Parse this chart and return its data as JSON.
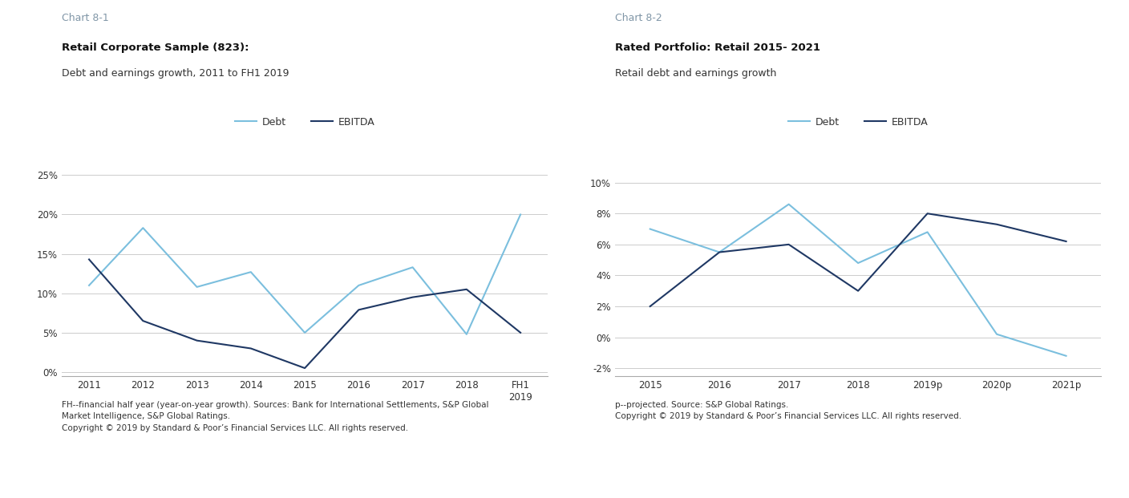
{
  "chart1": {
    "title": "Chart 8-1",
    "title_color": "#8096a7",
    "bold_title": "Retail Corporate Sample (823):",
    "subtitle": "Debt and earnings growth, 2011 to FH1 2019",
    "x_labels": [
      "2011",
      "2012",
      "2013",
      "2014",
      "2015",
      "2016",
      "2017",
      "2018",
      "FH1\n2019"
    ],
    "x_values": [
      0,
      1,
      2,
      3,
      4,
      5,
      6,
      7,
      8
    ],
    "debt_values": [
      0.11,
      0.183,
      0.108,
      0.127,
      0.05,
      0.11,
      0.133,
      0.048,
      0.2
    ],
    "ebitda_values": [
      0.143,
      0.065,
      0.04,
      0.03,
      0.005,
      0.079,
      0.095,
      0.105,
      0.05
    ],
    "ylim": [
      -0.005,
      0.27
    ],
    "yticks": [
      0.0,
      0.05,
      0.1,
      0.15,
      0.2,
      0.25
    ],
    "ytick_labels": [
      "0%",
      "5%",
      "10%",
      "15%",
      "20%",
      "25%"
    ],
    "debt_color": "#7bbfde",
    "ebitda_color": "#1f3864",
    "footnote": "FH--financial half year (year-on-year growth). Sources: Bank for International Settlements, S&P Global\nMarket Intelligence, S&P Global Ratings.\nCopyright © 2019 by Standard & Poor’s Financial Services LLC. All rights reserved."
  },
  "chart2": {
    "title": "Chart 8-2",
    "title_color": "#8096a7",
    "bold_title": "Rated Portfolio: Retail 2015- 2021",
    "subtitle": "Retail debt and earnings growth",
    "x_labels": [
      "2015",
      "2016",
      "2017",
      "2018",
      "2019p",
      "2020p",
      "2021p"
    ],
    "x_values": [
      0,
      1,
      2,
      3,
      4,
      5,
      6
    ],
    "debt_values": [
      0.07,
      0.055,
      0.086,
      0.048,
      0.068,
      0.002,
      -0.012
    ],
    "ebitda_values": [
      0.02,
      0.055,
      0.06,
      0.03,
      0.08,
      0.073,
      0.062
    ],
    "ylim": [
      -0.025,
      0.115
    ],
    "yticks": [
      -0.02,
      0.0,
      0.02,
      0.04,
      0.06,
      0.08,
      0.1
    ],
    "ytick_labels": [
      "-2%",
      "0%",
      "2%",
      "4%",
      "6%",
      "8%",
      "10%"
    ],
    "debt_color": "#7bbfde",
    "ebitda_color": "#1f3864",
    "footnote": "p--projected. Source: S&P Global Ratings.\nCopyright © 2019 by Standard & Poor’s Financial Services LLC. All rights reserved."
  },
  "bg_color": "#ffffff",
  "grid_color": "#cccccc",
  "text_color": "#000000",
  "legend_debt_label": "Debt",
  "legend_ebitda_label": "EBITDA"
}
